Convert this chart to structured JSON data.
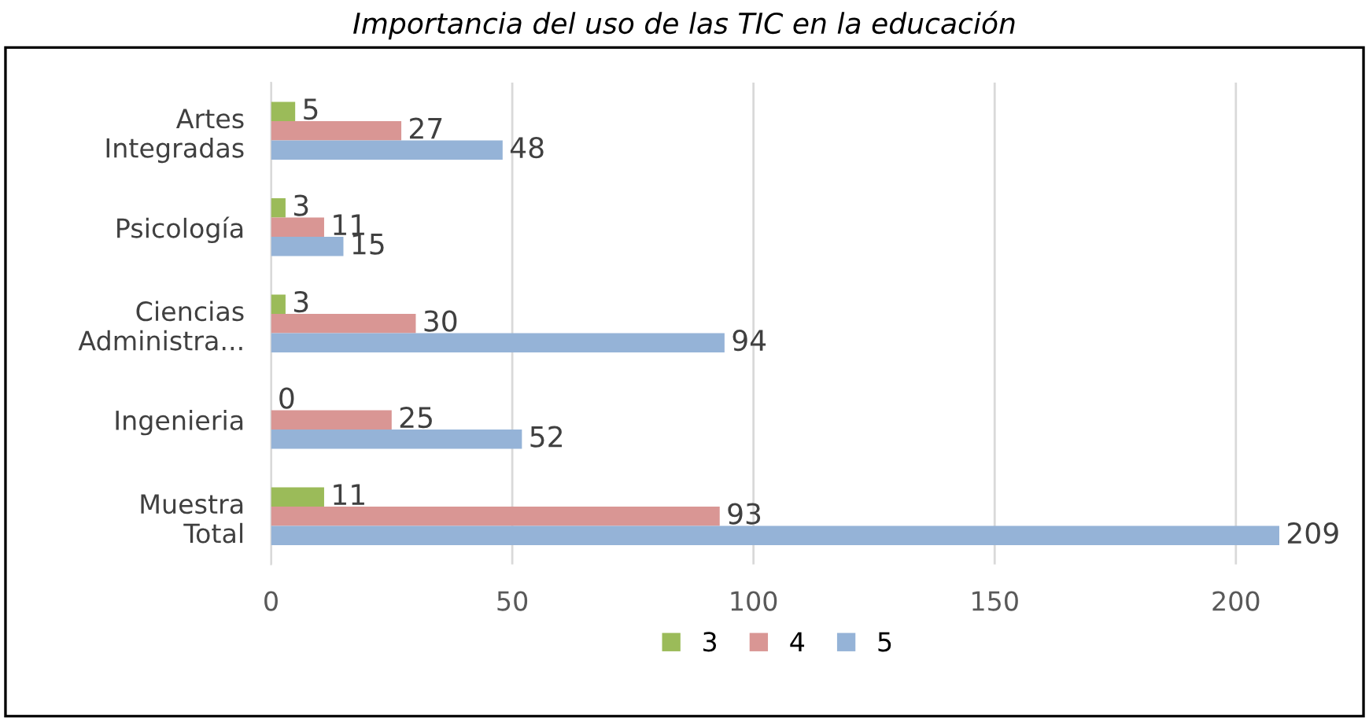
{
  "chart_data": {
    "type": "bar",
    "orientation": "horizontal",
    "title": "Importancia del uso de las TIC en la educación",
    "categories": [
      "Artes\nIntegradas",
      "Psicología",
      "Ciencias\nAdministra...",
      "Ingenieria",
      "Muestra\nTotal"
    ],
    "series": [
      {
        "name": "3",
        "color": "#9bbb59",
        "values": [
          5,
          3,
          3,
          0,
          11
        ]
      },
      {
        "name": "4",
        "color": "#d99694",
        "values": [
          27,
          11,
          30,
          25,
          93
        ]
      },
      {
        "name": "5",
        "color": "#95b3d7",
        "values": [
          48,
          15,
          94,
          52,
          209
        ]
      }
    ],
    "xlim": [
      0,
      210
    ],
    "xticks": [
      0,
      50,
      100,
      150,
      200
    ],
    "grid": "x",
    "legend": "bottom",
    "data_labels": true
  }
}
